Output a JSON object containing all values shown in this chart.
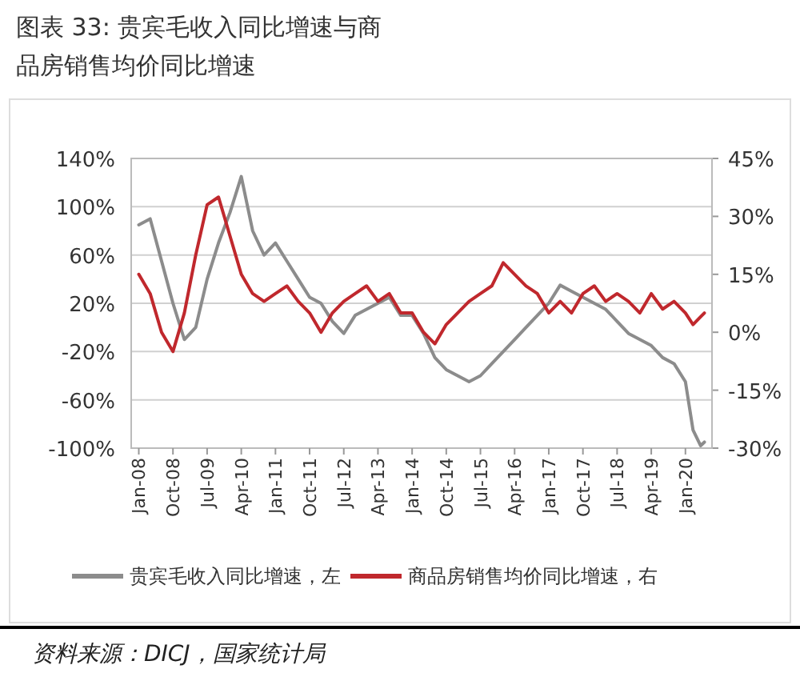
{
  "chart_data": {
    "type": "line",
    "title": "图表 33:        贵宾毛收入同比增速与商品房销售均价同比增速",
    "x": [
      "2008-01",
      "2008-04",
      "2008-07",
      "2008-10",
      "2009-01",
      "2009-04",
      "2009-07",
      "2009-10",
      "2010-01",
      "2010-04",
      "2010-07",
      "2010-10",
      "2011-01",
      "2011-04",
      "2011-07",
      "2011-10",
      "2012-01",
      "2012-04",
      "2012-07",
      "2012-10",
      "2013-01",
      "2013-04",
      "2013-07",
      "2013-10",
      "2014-01",
      "2014-04",
      "2014-07",
      "2014-10",
      "2015-01",
      "2015-04",
      "2015-07",
      "2015-10",
      "2016-01",
      "2016-04",
      "2016-07",
      "2016-10",
      "2017-01",
      "2017-04",
      "2017-07",
      "2017-10",
      "2018-01",
      "2018-04",
      "2018-07",
      "2018-10",
      "2019-01",
      "2019-04",
      "2019-07",
      "2019-10",
      "2020-01",
      "2020-03",
      "2020-05",
      "2020-06"
    ],
    "series": [
      {
        "name": "贵宾毛收入同比增速，左",
        "color": "#8c8c8c",
        "values": [
          85,
          90,
          55,
          20,
          -10,
          0,
          40,
          70,
          95,
          125,
          80,
          60,
          70,
          55,
          40,
          25,
          20,
          5,
          -5,
          10,
          15,
          20,
          25,
          10,
          10,
          -5,
          -25,
          -35,
          -40,
          -45,
          -40,
          -30,
          -20,
          -10,
          0,
          10,
          20,
          35,
          30,
          25,
          20,
          15,
          5,
          -5,
          -10,
          -15,
          -25,
          -30,
          -45,
          -85,
          -98,
          -95
        ]
      },
      {
        "name": "商品房销售均价同比增速，右",
        "color": "#c0282d",
        "axis": "y2",
        "values": [
          15,
          10,
          0,
          -5,
          5,
          20,
          33,
          35,
          25,
          15,
          10,
          8,
          10,
          12,
          8,
          5,
          0,
          5,
          8,
          10,
          12,
          8,
          10,
          5,
          5,
          0,
          -3,
          2,
          5,
          8,
          10,
          12,
          18,
          15,
          12,
          10,
          5,
          8,
          5,
          10,
          12,
          8,
          10,
          8,
          5,
          10,
          6,
          8,
          5,
          2,
          4,
          5
        ]
      }
    ],
    "xlim": [
      "2007-11",
      "2020-08"
    ],
    "xticks": [
      {
        "value": "2008-01",
        "label": "Jan-08"
      },
      {
        "value": "2008-10",
        "label": "Oct-08"
      },
      {
        "value": "2009-07",
        "label": "Jul-09"
      },
      {
        "value": "2010-04",
        "label": "Apr-10"
      },
      {
        "value": "2011-01",
        "label": "Jan-11"
      },
      {
        "value": "2011-10",
        "label": "Oct-11"
      },
      {
        "value": "2012-07",
        "label": "Jul-12"
      },
      {
        "value": "2013-04",
        "label": "Apr-13"
      },
      {
        "value": "2014-01",
        "label": "Jan-14"
      },
      {
        "value": "2014-10",
        "label": "Oct-14"
      },
      {
        "value": "2015-07",
        "label": "Jul-15"
      },
      {
        "value": "2016-04",
        "label": "Apr-16"
      },
      {
        "value": "2017-01",
        "label": "Jan-17"
      },
      {
        "value": "2017-10",
        "label": "Oct-17"
      },
      {
        "value": "2018-07",
        "label": "Jul-18"
      },
      {
        "value": "2019-04",
        "label": "Apr-19"
      },
      {
        "value": "2020-01",
        "label": "Jan-20"
      }
    ],
    "ylim": [
      -100,
      140
    ],
    "yticks": [
      {
        "value": -100,
        "label": "-100%"
      },
      {
        "value": -60,
        "label": "-60%"
      },
      {
        "value": -20,
        "label": "-20%"
      },
      {
        "value": 20,
        "label": "20%"
      },
      {
        "value": 60,
        "label": "60%"
      },
      {
        "value": 100,
        "label": "100%"
      },
      {
        "value": 140,
        "label": "140%"
      }
    ],
    "y2lim": [
      -30,
      45
    ],
    "y2ticks": [
      {
        "value": -30,
        "label": "-30%"
      },
      {
        "value": -15,
        "label": "-15%"
      },
      {
        "value": 0,
        "label": "0%"
      },
      {
        "value": 15,
        "label": "15%"
      },
      {
        "value": 30,
        "label": "30%"
      },
      {
        "value": 45,
        "label": "45%"
      }
    ],
    "grid": "y",
    "legend": "bottom",
    "annotations": [
      "资料来源：DICJ，国家统计局"
    ]
  }
}
